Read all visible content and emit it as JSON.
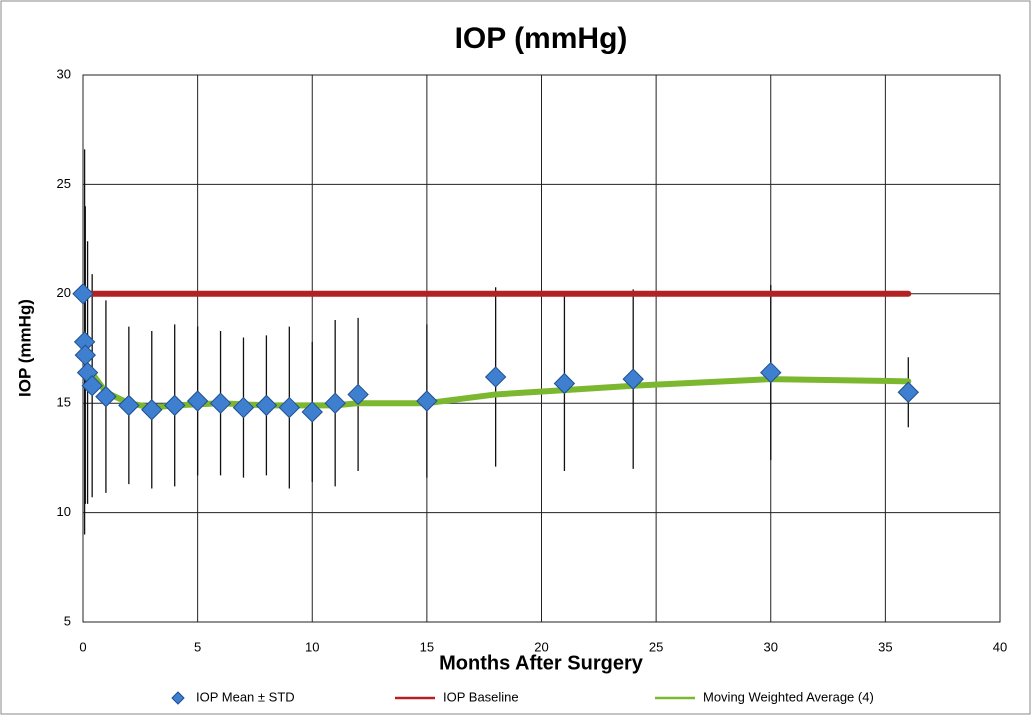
{
  "chart_data": {
    "type": "scatter",
    "title": "IOP (mmHg)",
    "x_label": "Months After Surgery",
    "y_label": "IOP (mmHg)",
    "xlim": [
      0,
      40
    ],
    "xticks": [
      0,
      5,
      10,
      15,
      20,
      25,
      30,
      35,
      40
    ],
    "ylim": [
      5,
      30
    ],
    "yticks": [
      5,
      10,
      15,
      20,
      25,
      30
    ],
    "grid": true,
    "series": [
      {
        "name": "IOP Mean ± STD",
        "type": "markers",
        "color": "#3f7fd0",
        "x": [
          0,
          0.07,
          0.1,
          0.2,
          0.4,
          1,
          2,
          3,
          4,
          5,
          6,
          7,
          8,
          9,
          10,
          11,
          12,
          15,
          18,
          21,
          24,
          30,
          36
        ],
        "values": [
          20.0,
          17.8,
          17.2,
          16.4,
          15.8,
          15.3,
          14.9,
          14.7,
          14.9,
          15.1,
          15.0,
          14.8,
          14.9,
          14.8,
          14.6,
          15.0,
          15.4,
          15.1,
          16.2,
          15.9,
          16.1,
          16.4,
          15.5
        ],
        "errors": [
          null,
          8.8,
          6.8,
          6.0,
          5.1,
          4.4,
          3.6,
          3.6,
          3.7,
          3.4,
          3.3,
          3.2,
          3.2,
          3.7,
          3.2,
          3.8,
          3.5,
          3.5,
          4.1,
          4.0,
          4.1,
          4.0,
          1.6
        ]
      },
      {
        "name": "IOP Baseline",
        "type": "line",
        "color": "#b22222",
        "x": [
          0,
          36
        ],
        "values": [
          20,
          20
        ]
      },
      {
        "name": "Moving Weighted Average (4)",
        "type": "line",
        "color": "#7cb82f",
        "x": [
          0.3,
          1,
          2,
          3,
          4,
          6,
          8,
          10,
          11,
          12,
          15,
          18,
          21,
          24,
          30,
          36
        ],
        "values": [
          16.5,
          15.5,
          15.0,
          14.8,
          14.9,
          15.0,
          14.9,
          14.9,
          14.9,
          15.0,
          15.0,
          15.4,
          15.6,
          15.8,
          16.1,
          16.0
        ]
      }
    ]
  }
}
